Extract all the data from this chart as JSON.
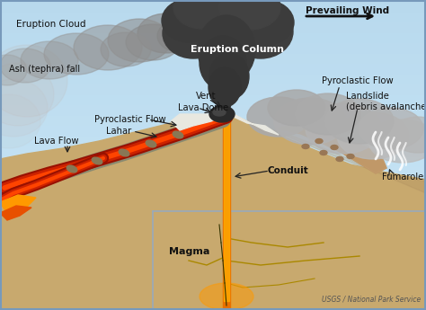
{
  "labels": {
    "eruption_cloud": "Eruption Cloud",
    "eruption_column": "Eruption Column",
    "ash_fall": "Ash (tephra) fall",
    "vent": "Vent",
    "lava_dome": "Lava Dome",
    "pyroclastic_flow_left": "Pyroclastic Flow",
    "pyroclastic_flow_right": "Pyroclastic Flow",
    "lahar": "Lahar",
    "lava_flow": "Lava Flow",
    "conduit": "Conduit",
    "magma": "Magma",
    "landslide": "Landslide\n(debris avalanche)",
    "fumaroles": "Fumaroles",
    "prevailing_wind": "Prevailing Wind",
    "credit": "USGS / National Park Service"
  },
  "colors": {
    "sky_top": "#c8e8f5",
    "sky_bottom": "#a0cce0",
    "ground_tan": "#c8a96e",
    "ground_light": "#dfc090",
    "ground_shadow": "#b09060",
    "underground_light": "#e8d0a0",
    "underground_box": "#d4c090",
    "lava_red": "#cc2200",
    "lava_orange": "#e85000",
    "lava_bright": "#ff7700",
    "lava_pool": "#ff9900",
    "conduit_orange": "#e87000",
    "conduit_bright": "#ffaa00",
    "smoke_dark": "#3a3a3a",
    "smoke_med": "#555555",
    "smoke_light": "#888888",
    "smoke_pale": "#aaaaaa",
    "pyro_grey": "#aaaaaa",
    "pyro_white": "#ddddcc",
    "debris_tan": "#b89060",
    "debris_light": "#c8a070",
    "fumarole_white": "#e8e8e8",
    "lahar_grey": "#8899aa",
    "lahar_blue": "#6688aa",
    "text_dark": "#111111",
    "border": "#7799bb"
  },
  "figsize": [
    4.74,
    3.45
  ],
  "dpi": 100
}
